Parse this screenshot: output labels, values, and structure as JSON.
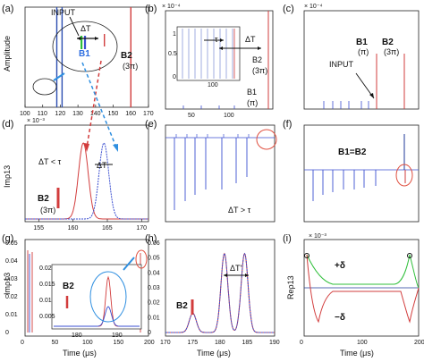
{
  "figure": {
    "panels": [
      "(a)",
      "(b)",
      "(c)",
      "(d)",
      "(e)",
      "(f)",
      "(g)",
      "(h)",
      "(i)"
    ],
    "colors": {
      "blue": "#3b4fd0",
      "red": "#d23c3c",
      "green": "#2fbf3a",
      "cyan": "#2f8fe0",
      "darkblue": "#1f3a9a",
      "axis": "#222222"
    }
  },
  "chart_data": [
    {
      "panel": "(a)",
      "type": "line",
      "ylabel": "Amplitude",
      "xticks": [
        "100",
        "110",
        "120",
        "130",
        "140",
        "150",
        "160",
        "170"
      ],
      "xlim": [
        100,
        170
      ],
      "series": [
        {
          "x": 118,
          "color": "#2b4db0"
        },
        {
          "x": 121,
          "color": "#2b4db0"
        },
        {
          "x": 132,
          "color": "#2fbf3a"
        },
        {
          "x": 134,
          "color": "#3b4fd0"
        },
        {
          "x": 145,
          "color": "#d23c3c"
        },
        {
          "x": 160,
          "color": "#d23c3c"
        }
      ],
      "annotations": [
        "INPUT",
        "ΔT",
        "B1",
        "B2",
        "(3π)"
      ]
    },
    {
      "panel": "(b)",
      "type": "line",
      "yexp": "× 10⁻⁴",
      "xticks": [
        "50",
        "100"
      ],
      "inset_yticks": [
        "1",
        "0.5",
        "0"
      ],
      "inset_xticks": [
        "100"
      ],
      "annotations": [
        "τ",
        "ΔT",
        "B2",
        "(3π)",
        "B1",
        "(π)"
      ]
    },
    {
      "panel": "(c)",
      "type": "line",
      "yexp": "× 10⁻⁴",
      "annotations": [
        "INPUT",
        "B1",
        "(π)",
        "B2",
        "(3π)"
      ]
    },
    {
      "panel": "(d)",
      "type": "line",
      "yexp": "× 10⁻³",
      "ylabel": "Imρ13",
      "xticks": [
        "155",
        "160",
        "165",
        "170"
      ],
      "xlim": [
        153,
        171
      ],
      "series": [
        {
          "name": "",
          "color": "#d23c3c",
          "peak_x": 161.5
        },
        {
          "name": "",
          "color": "#3b4fd0",
          "peak_x": 164.5
        }
      ],
      "annotations": [
        "ΔT < τ",
        "ΔT",
        "B2",
        "(3π)"
      ]
    },
    {
      "panel": "(e)",
      "type": "line",
      "annotations": [
        "ΔT > τ"
      ]
    },
    {
      "panel": "(f)",
      "type": "line",
      "annotations": [
        "B1=B2"
      ]
    },
    {
      "panel": "(g)",
      "type": "line",
      "ylabel": "Imρ13",
      "xlabel": "Time (μs)",
      "yticks": [
        "0.05",
        "0.04",
        "0.03",
        "0.02",
        "0.01",
        "0"
      ],
      "xticks": [
        "0",
        "50",
        "100",
        "150",
        "200"
      ],
      "xlim": [
        0,
        200
      ],
      "ylim": [
        0,
        0.05
      ],
      "inset_yticks": [
        "0.02",
        "0.015",
        "0.01",
        "0.005"
      ],
      "inset_xticks": [
        "180",
        "190"
      ],
      "annotations": [
        "B2"
      ]
    },
    {
      "panel": "(h)",
      "type": "line",
      "xlabel": "Time (μs)",
      "yticks": [
        "0.06",
        "0.05",
        "0.04",
        "0.03",
        "0.02",
        "0.01",
        "0"
      ],
      "xticks": [
        "170",
        "175",
        "180",
        "185",
        "190"
      ],
      "xlim": [
        170,
        190
      ],
      "ylim": [
        0,
        0.06
      ],
      "series": [
        {
          "name": "",
          "color": "#d23c3c",
          "peaks": [
            [
              175,
              0.013
            ],
            [
              180.8,
              0.053
            ],
            [
              184.5,
              0.053
            ]
          ]
        },
        {
          "name": "",
          "color": "#3b4fd0",
          "peaks": [
            [
              175,
              0.013
            ],
            [
              180.8,
              0.053
            ],
            [
              184.5,
              0.053
            ]
          ]
        }
      ],
      "annotations": [
        "B2",
        "ΔT'"
      ]
    },
    {
      "panel": "(i)",
      "type": "line",
      "ylabel": "Reρ13",
      "xlabel": "Time (μs)",
      "yexp": "× 10⁻³",
      "xticks": [
        "0",
        "100",
        "200"
      ],
      "xlim": [
        0,
        200
      ],
      "annotations": [
        "+δ",
        "−δ"
      ]
    }
  ]
}
